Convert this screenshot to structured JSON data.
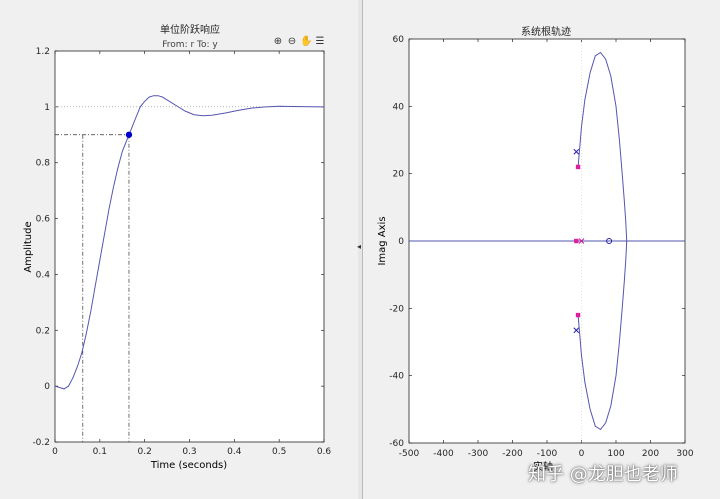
{
  "left_plot": {
    "title": "单位阶跃响应",
    "subtitle": "From: r  To: y",
    "xlabel": "Time (seconds)",
    "ylabel": "Amplitude",
    "toolbar": [
      "zoom-in-icon",
      "zoom-out-icon",
      "pan-hand-icon",
      "legend-icon"
    ]
  },
  "right_plot": {
    "title": "系统根轨迹",
    "ylabel": "Imag Axis",
    "xlabel": "实轴"
  },
  "watermark": "知乎 @龙胆也老师",
  "colors": {
    "curve": "#5555b0",
    "marker": "#0000cc",
    "pole": "#2323a8",
    "zero_square": "#e01fa0",
    "axes": "#262626"
  },
  "chart_data": [
    {
      "type": "line",
      "title": "单位阶跃响应",
      "subtitle": "From: r  To: y",
      "xlabel": "Time (seconds)",
      "ylabel": "Amplitude",
      "xlim": [
        0,
        0.6
      ],
      "ylim": [
        -0.2,
        1.2
      ],
      "xticks": [
        "0",
        "0.1",
        "0.2",
        "0.3",
        "0.4",
        "0.5",
        "0.6"
      ],
      "yticks": [
        "-0.2",
        "0",
        "0.2",
        "0.4",
        "0.6",
        "0.8",
        "1",
        "1.2"
      ],
      "series": [
        {
          "x": [
            0,
            0.01,
            0.02,
            0.03,
            0.04,
            0.05,
            0.06,
            0.07,
            0.08,
            0.09,
            0.1,
            0.11,
            0.12,
            0.13,
            0.14,
            0.15,
            0.16,
            0.165,
            0.18,
            0.19,
            0.2,
            0.21,
            0.22,
            0.23,
            0.24,
            0.25,
            0.27,
            0.29,
            0.31,
            0.33,
            0.35,
            0.38,
            0.41,
            0.44,
            0.47,
            0.5,
            0.55,
            0.6
          ],
          "y": [
            0,
            -0.005,
            -0.01,
            0.0,
            0.03,
            0.07,
            0.12,
            0.19,
            0.27,
            0.36,
            0.45,
            0.54,
            0.63,
            0.71,
            0.78,
            0.84,
            0.88,
            0.9,
            0.96,
            1.0,
            1.02,
            1.035,
            1.04,
            1.04,
            1.035,
            1.025,
            1.005,
            0.985,
            0.972,
            0.968,
            0.97,
            0.978,
            0.988,
            0.996,
            1.0,
            1.002,
            1.001,
            1.0
          ]
        }
      ],
      "reference_line": 1,
      "marker": {
        "x": 0.165,
        "y": 0.9
      },
      "rise_time_markers": {
        "x_start": 0.062,
        "x_end": 0.165,
        "y_level": 0.9
      }
    },
    {
      "type": "scatter",
      "title": "系统根轨迹",
      "ylabel": "Imag Axis",
      "xlabel": "实轴",
      "xlim": [
        -500,
        300
      ],
      "ylim": [
        -60,
        60
      ],
      "xticks": [
        "-500",
        "-400",
        "-300",
        "-200",
        "-100",
        "0",
        "100",
        "200",
        "300"
      ],
      "yticks": [
        "-60",
        "-40",
        "-20",
        "0",
        "20",
        "40",
        "60"
      ],
      "branches": [
        {
          "x": [
            -10,
            -5,
            0,
            10,
            25,
            40,
            55,
            70,
            85,
            100,
            110,
            118,
            124,
            128,
            130,
            131
          ],
          "y": [
            22,
            28,
            34,
            42,
            50,
            55,
            56,
            54,
            49,
            40,
            30,
            20,
            12,
            6,
            2,
            0
          ]
        },
        {
          "x": [
            -10,
            -5,
            0,
            10,
            25,
            40,
            55,
            70,
            85,
            100,
            110,
            118,
            124,
            128,
            130,
            131
          ],
          "y": [
            -22,
            -28,
            -34,
            -42,
            -50,
            -55,
            -56,
            -54,
            -49,
            -40,
            -30,
            -20,
            -12,
            -6,
            -2,
            0
          ]
        },
        {
          "x": [
            -500,
            300
          ],
          "y": [
            0,
            0
          ]
        }
      ],
      "poles": [
        {
          "x": -15,
          "y": 26.5
        },
        {
          "x": -15,
          "y": -26.5
        },
        {
          "x": 0,
          "y": 0
        }
      ],
      "zeros": [
        {
          "x": 80,
          "y": 0
        }
      ],
      "closed_loop_poles": [
        {
          "x": -10,
          "y": 22
        },
        {
          "x": -10,
          "y": -22
        },
        {
          "x": -15,
          "y": 0
        }
      ]
    }
  ]
}
